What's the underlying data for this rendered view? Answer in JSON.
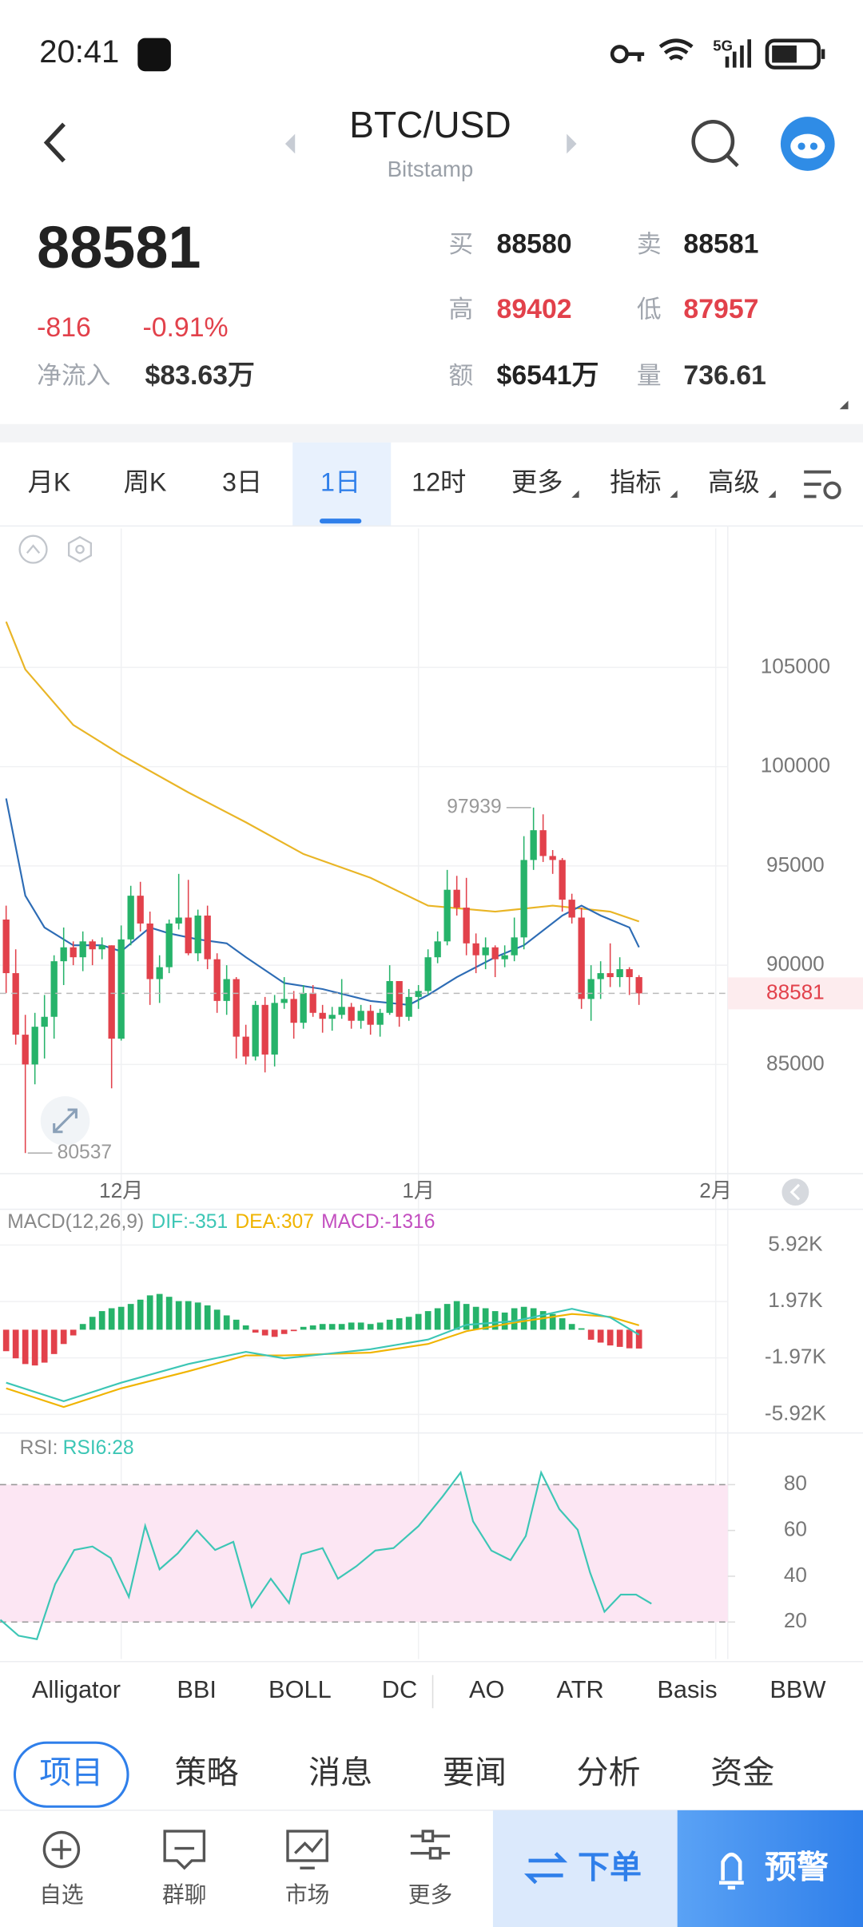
{
  "status_bar": {
    "time": "20:41",
    "network": "5G"
  },
  "header": {
    "title": "BTC/USD",
    "subtitle": "Bitstamp"
  },
  "quote": {
    "last": "88581",
    "change": "-816",
    "change_pct": "-0.91%",
    "net_inflow_label": "净流入",
    "net_inflow": "$83.63万",
    "bid_label": "买",
    "bid": "88580",
    "ask_label": "卖",
    "ask": "88581",
    "high_label": "高",
    "high": "89402",
    "low_label": "低",
    "low": "87957",
    "amount_label": "额",
    "amount": "$6541万",
    "volume_label": "量",
    "volume": "736.61"
  },
  "period_tabs": {
    "items": [
      "月K",
      "周K",
      "3日",
      "1日",
      "12时",
      "更多",
      "指标",
      "高级"
    ],
    "active": 3
  },
  "chart": {
    "price": {
      "type": "candlestick",
      "xlim": [
        -0.64,
        75.26
      ],
      "ylim": [
        79500,
        112000
      ],
      "yticks": [
        85000,
        90000,
        95000,
        100000,
        105000
      ],
      "xticks": [
        {
          "value": 12,
          "label": "12月"
        },
        {
          "value": 43,
          "label": "1月"
        },
        {
          "value": 74,
          "label": "2月"
        }
      ],
      "grid": true,
      "up_color": "#26b36a",
      "down_color": "#e2414b",
      "last_price": 88581,
      "ohlc": [
        [
          92300,
          93000,
          88600,
          89600
        ],
        [
          89600,
          90800,
          86000,
          86500
        ],
        [
          86500,
          87500,
          80537,
          85000
        ],
        [
          85000,
          87600,
          84000,
          86900
        ],
        [
          86900,
          88500,
          85300,
          87400
        ],
        [
          87400,
          90500,
          86300,
          90200
        ],
        [
          90200,
          91900,
          89000,
          90900
        ],
        [
          90900,
          91200,
          90000,
          90400
        ],
        [
          90400,
          91700,
          89700,
          91200
        ],
        [
          91200,
          91300,
          90000,
          90800
        ],
        [
          90800,
          91400,
          90300,
          91000
        ],
        [
          91000,
          91000,
          83800,
          86300
        ],
        [
          86300,
          92000,
          86200,
          91300
        ],
        [
          91300,
          94000,
          91000,
          93500
        ],
        [
          93500,
          94200,
          91700,
          92100
        ],
        [
          92100,
          92700,
          88000,
          89300
        ],
        [
          89300,
          90500,
          88100,
          89900
        ],
        [
          89900,
          92300,
          89600,
          92100
        ],
        [
          92100,
          94600,
          91800,
          92400
        ],
        [
          92400,
          94300,
          90500,
          90600
        ],
        [
          90600,
          92800,
          90200,
          92500
        ],
        [
          92500,
          93000,
          89800,
          90300
        ],
        [
          90300,
          90600,
          87600,
          88200
        ],
        [
          88200,
          90000,
          87500,
          89300
        ],
        [
          89300,
          89400,
          85300,
          86400
        ],
        [
          86400,
          87000,
          85000,
          85400
        ],
        [
          85400,
          88200,
          85200,
          88000
        ],
        [
          88000,
          88400,
          84600,
          85500
        ],
        [
          85500,
          88500,
          84900,
          88100
        ],
        [
          88100,
          89400,
          87800,
          88300
        ],
        [
          88300,
          88700,
          86300,
          87100
        ],
        [
          87100,
          89000,
          86800,
          88600
        ],
        [
          88600,
          89000,
          87400,
          87600
        ],
        [
          87600,
          88000,
          86600,
          87300
        ],
        [
          87300,
          87900,
          86700,
          87500
        ],
        [
          87500,
          89300,
          87300,
          87900
        ],
        [
          87900,
          88100,
          86800,
          87200
        ],
        [
          87200,
          88000,
          86800,
          87700
        ],
        [
          87700,
          88000,
          86500,
          87000
        ],
        [
          87000,
          87800,
          86400,
          87600
        ],
        [
          87600,
          90000,
          87500,
          89200
        ],
        [
          89200,
          89200,
          86900,
          87400
        ],
        [
          87400,
          88800,
          87200,
          88400
        ],
        [
          88400,
          89000,
          87800,
          88700
        ],
        [
          88700,
          90800,
          88500,
          90400
        ],
        [
          90400,
          91700,
          90100,
          91200
        ],
        [
          91200,
          94800,
          91000,
          93800
        ],
        [
          93800,
          94500,
          92500,
          92900
        ],
        [
          92900,
          94400,
          90500,
          91100
        ],
        [
          91100,
          91600,
          89600,
          90500
        ],
        [
          90500,
          91400,
          89800,
          90900
        ],
        [
          90900,
          91000,
          89400,
          90300
        ],
        [
          90300,
          91000,
          89900,
          90500
        ],
        [
          90500,
          92400,
          90200,
          91400
        ],
        [
          91400,
          96500,
          90800,
          95300
        ],
        [
          95300,
          97939,
          94800,
          96800
        ],
        [
          96800,
          97600,
          95200,
          95500
        ],
        [
          95500,
          95800,
          94600,
          95300
        ],
        [
          95300,
          95400,
          92700,
          93300
        ],
        [
          93300,
          93600,
          92100,
          92400
        ],
        [
          92400,
          92900,
          87800,
          88300
        ],
        [
          88300,
          90000,
          87200,
          89300
        ],
        [
          89300,
          90200,
          88300,
          89600
        ],
        [
          89600,
          91100,
          88900,
          89400
        ],
        [
          89400,
          90400,
          88900,
          89800
        ],
        [
          89800,
          89900,
          88500,
          89400
        ],
        [
          89400,
          89500,
          88000,
          88581
        ]
      ],
      "ma_fast": {
        "color": "#2d6cb5",
        "x": [
          0,
          2,
          4,
          7,
          10,
          12,
          15,
          17,
          20,
          23,
          25,
          29,
          33,
          38,
          42,
          44,
          47,
          51,
          54,
          58,
          60,
          62,
          65,
          66
        ],
        "values": [
          98400,
          93500,
          91900,
          91000,
          91000,
          90700,
          91900,
          91600,
          91300,
          91100,
          90400,
          89100,
          88800,
          88200,
          88000,
          88500,
          89400,
          90400,
          91000,
          92500,
          93000,
          92500,
          91900,
          90900
        ]
      },
      "ma_slow": {
        "color": "#e9b526",
        "x": [
          0,
          2,
          7,
          12,
          19,
          25,
          31,
          38,
          44,
          51,
          57,
          63,
          66
        ],
        "values": [
          107300,
          104900,
          102100,
          100600,
          98700,
          97200,
          95600,
          94400,
          93000,
          92700,
          93000,
          92700,
          92200
        ]
      }
    },
    "macd": {
      "type": "bar",
      "title": "MACD(12,26,9)",
      "dif_label": "DIF:-351",
      "dea_label": "DEA:307",
      "macd_label": "MACD:-1316",
      "ylim": [
        -7130,
        8330
      ],
      "yticks": [
        {
          "value": 5920,
          "label": "5.92K"
        },
        {
          "value": 1970,
          "label": "1.97K"
        },
        {
          "value": -1970,
          "label": "-1.97K"
        },
        {
          "value": -5920,
          "label": "-5.92K"
        }
      ],
      "histogram": [
        -1500,
        -2000,
        -2400,
        -2500,
        -2300,
        -1700,
        -1000,
        -400,
        400,
        900,
        1300,
        1500,
        1600,
        1800,
        2100,
        2400,
        2500,
        2300,
        2000,
        2000,
        1900,
        1700,
        1400,
        1000,
        700,
        300,
        -200,
        -400,
        -500,
        -300,
        -100,
        200,
        300,
        400,
        400,
        400,
        500,
        500,
        400,
        500,
        700,
        800,
        900,
        1100,
        1300,
        1500,
        1800,
        2000,
        1800,
        1600,
        1500,
        1300,
        1200,
        1500,
        1600,
        1500,
        1300,
        1100,
        800,
        400,
        100,
        -700,
        -900,
        -1100,
        -1200,
        -1300,
        -1316
      ],
      "dif": {
        "color": "#3cc6b5",
        "x": [
          0,
          6,
          12,
          19,
          25,
          29,
          38,
          44,
          48,
          53,
          59,
          63,
          66
        ],
        "values": [
          -3700,
          -5000,
          -3700,
          -2400,
          -1550,
          -2000,
          -1370,
          -690,
          340,
          600,
          1460,
          860,
          -351
        ]
      },
      "dea": {
        "color": "#f0b400",
        "x": [
          0,
          6,
          12,
          19,
          25,
          29,
          38,
          44,
          48,
          53,
          59,
          63,
          66
        ],
        "values": [
          -4100,
          -5400,
          -4100,
          -2900,
          -1800,
          -1800,
          -1600,
          -1000,
          -100,
          500,
          1100,
          900,
          307
        ]
      }
    },
    "rsi": {
      "type": "line",
      "title": "RSI:",
      "rsi6_label": "RSI6:28",
      "ylim": [
        6.5,
        101.5
      ],
      "yticks": [
        20,
        40,
        60,
        80
      ],
      "band": [
        20,
        80
      ],
      "color": "#3cc6b5",
      "x": [
        -0.6,
        1.3,
        3.2,
        5.1,
        7.1,
        9,
        10.9,
        12.8,
        14.5,
        16,
        17.9,
        19.9,
        21.8,
        23.7,
        25.6,
        27.6,
        29.5,
        30.8,
        33,
        34.6,
        36.5,
        38.5,
        40.4,
        43,
        45.5,
        47.4,
        48.7,
        50.6,
        52.6,
        54.2,
        55.8,
        57.7,
        59.6,
        60.9,
        62.4,
        64.1,
        65.7,
        67.3
      ],
      "values": [
        21,
        14,
        12.5,
        36.5,
        51.5,
        53,
        48,
        31,
        62,
        43,
        50,
        60,
        51.5,
        55,
        26.6,
        38.9,
        28.3,
        49.6,
        52.3,
        38.9,
        44.3,
        51.2,
        52.3,
        61.9,
        74.7,
        85.3,
        64,
        51.2,
        47,
        57.6,
        85.3,
        69.3,
        60.3,
        41.6,
        24.5,
        32,
        32,
        28
      ]
    }
  },
  "indicators": [
    "Alligator",
    "BBI",
    "BOLL",
    "DC",
    "AO",
    "ATR",
    "Basis",
    "BBW"
  ],
  "news_tabs": {
    "items": [
      "项目",
      "策略",
      "消息",
      "要闻",
      "分析",
      "资金"
    ],
    "active": 0
  },
  "bottom_nav": {
    "items": [
      "自选",
      "群聊",
      "市场",
      "更多"
    ],
    "order_button": "下单",
    "alert_button": "预警"
  }
}
